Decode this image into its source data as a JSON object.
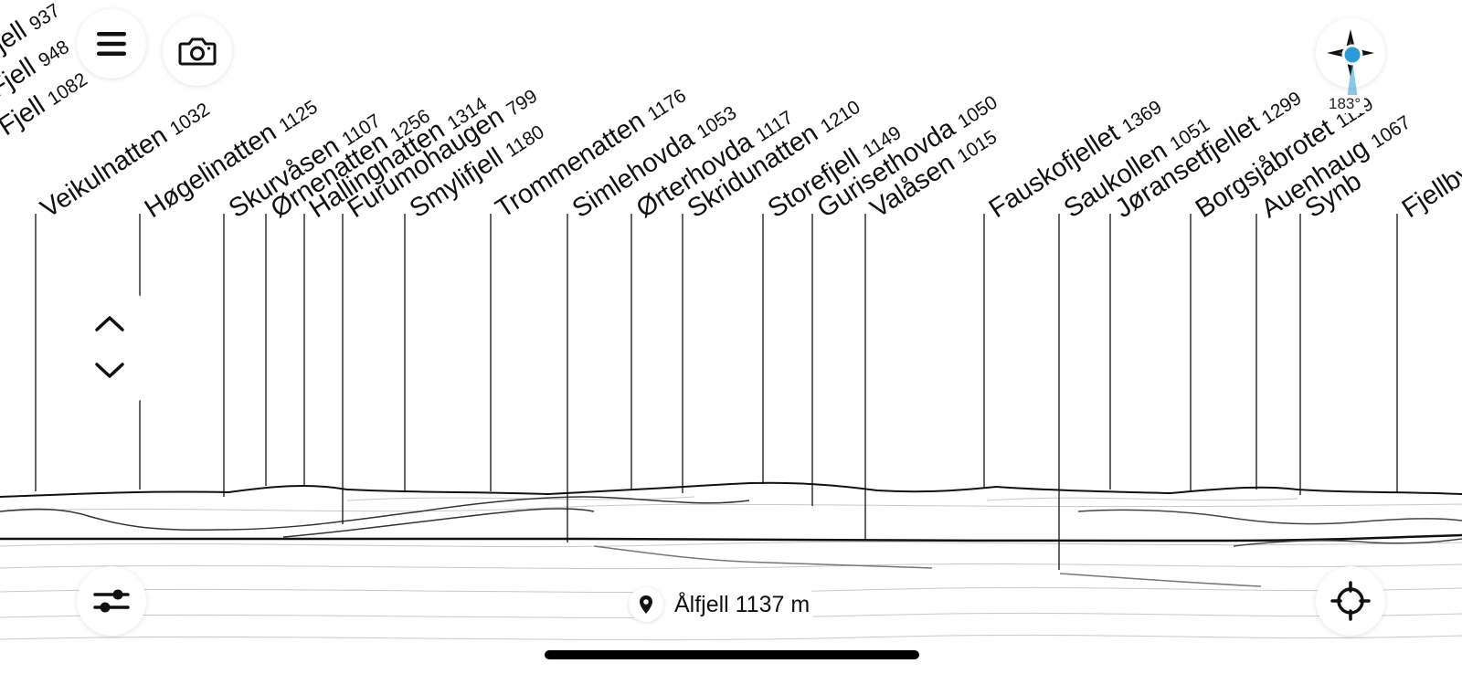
{
  "peaks": [
    {
      "name": "Fjell",
      "elevation": "937"
    },
    {
      "name": "Fjell",
      "elevation": "948"
    },
    {
      "name": "Fjell",
      "elevation": "1082"
    },
    {
      "name": "Veikulnatten",
      "elevation": "1032"
    },
    {
      "name": "Høgelinatten",
      "elevation": "1125"
    },
    {
      "name": "Skurvåsen",
      "elevation": "1107"
    },
    {
      "name": "Ørnenatten",
      "elevation": "1256"
    },
    {
      "name": "Hallingnatten",
      "elevation": "1314"
    },
    {
      "name": "Furumohaugen",
      "elevation": "799"
    },
    {
      "name": "Smylifjell",
      "elevation": "1180"
    },
    {
      "name": "Trommenatten",
      "elevation": "1176"
    },
    {
      "name": "Simlehovda",
      "elevation": "1053"
    },
    {
      "name": "Ørterhovda",
      "elevation": "1117"
    },
    {
      "name": "Skridunatten",
      "elevation": "1210"
    },
    {
      "name": "Storefjell",
      "elevation": "1149"
    },
    {
      "name": "Gurisethovda",
      "elevation": "1050"
    },
    {
      "name": "Valåsen",
      "elevation": "1015"
    },
    {
      "name": "Fauskofjellet",
      "elevation": "1369"
    },
    {
      "name": "Saukollen",
      "elevation": "1051"
    },
    {
      "name": "Jøransetfjellet",
      "elevation": "1299"
    },
    {
      "name": "Borgsjåbrotet",
      "elevation": "1119"
    },
    {
      "name": "Auenhaug",
      "elevation": "1067"
    },
    {
      "name": "Synb",
      "elevation": ""
    },
    {
      "name": "Fjellby",
      "elevation": ""
    }
  ],
  "compass": {
    "heading": "183°",
    "icon": "compass-rose-icon",
    "needle_color": "#2a9bd8"
  },
  "toolbar": {
    "menu_icon": "hamburger-menu-icon",
    "camera_icon": "camera-icon",
    "filter_icon": "sliders-icon",
    "locate_icon": "crosshair-icon"
  },
  "tilt": {
    "up_icon": "chevron-up-icon",
    "down_icon": "chevron-down-icon"
  },
  "location": {
    "icon": "map-pin-icon",
    "label": "Ålfjell 1137 m"
  }
}
